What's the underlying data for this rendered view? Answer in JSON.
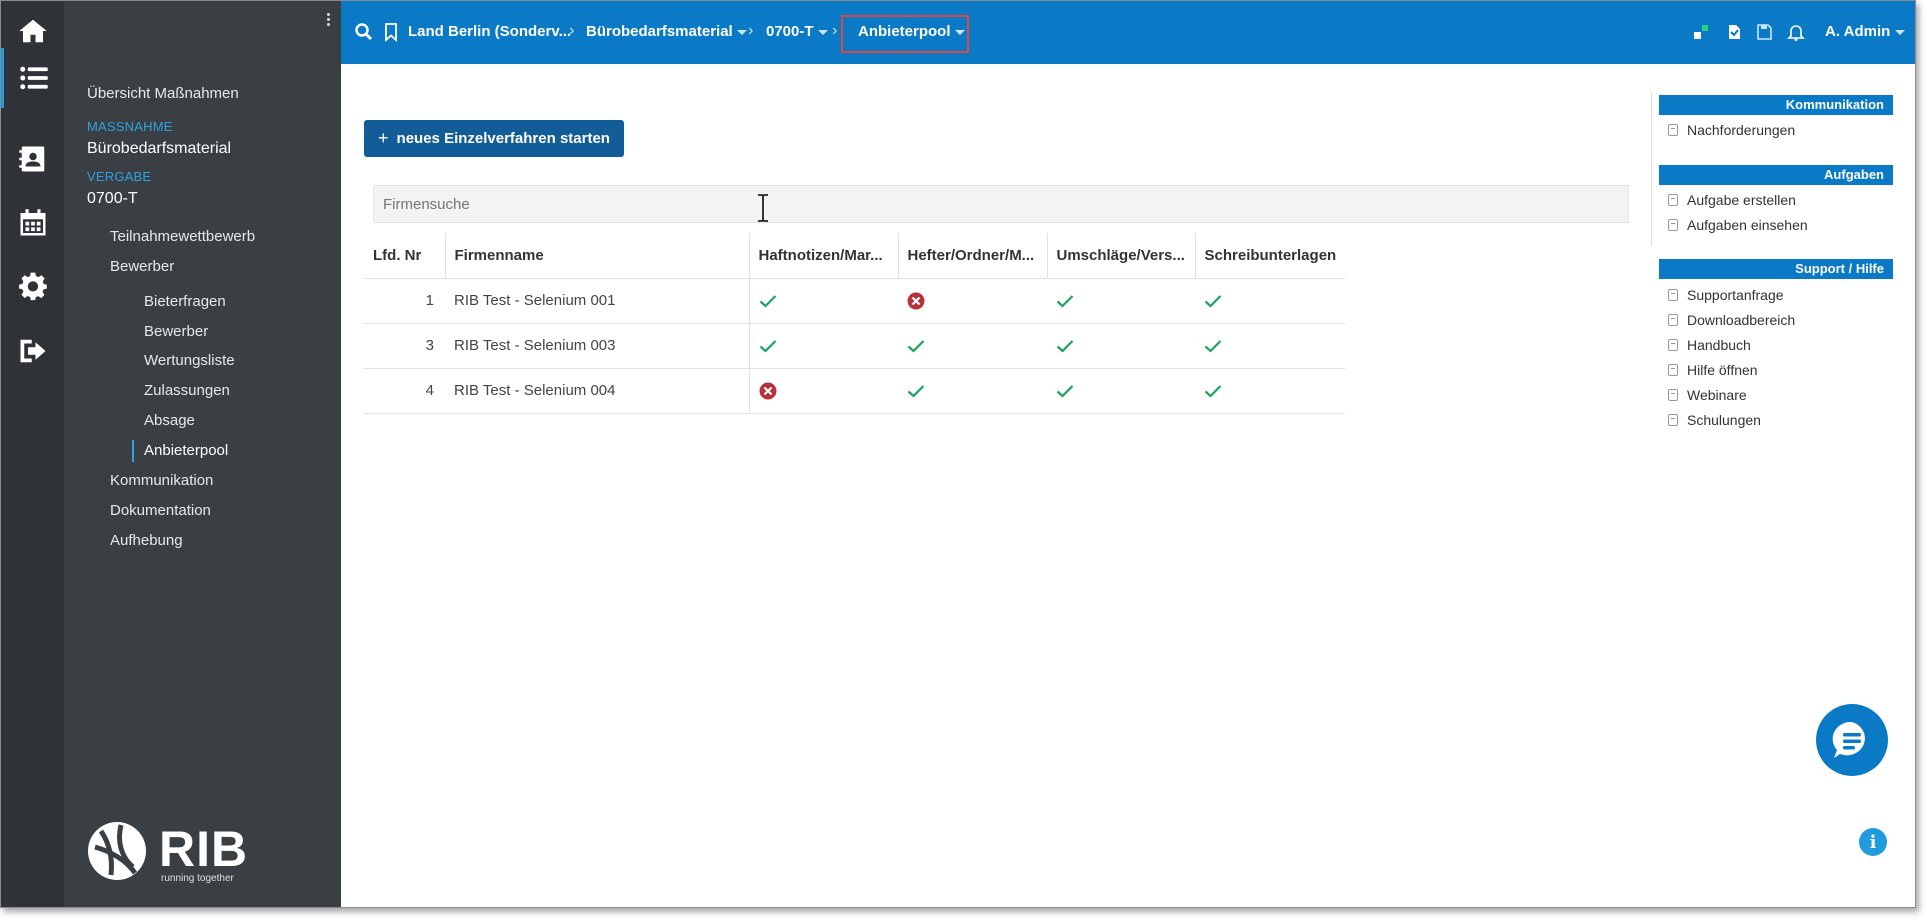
{
  "nav": {
    "overview": "Übersicht Maßnahmen",
    "massnahme_label": "Maßnahme",
    "massnahme_value": "Bürobedarfsmaterial",
    "vergabe_label": "Vergabe",
    "vergabe_value": "0700-T",
    "items": [
      {
        "label": "Teilnahmewettbewerb"
      },
      {
        "label": "Bewerber"
      }
    ],
    "subitems": [
      {
        "label": "Bieterfragen"
      },
      {
        "label": "Bewerber"
      },
      {
        "label": "Wertungsliste"
      },
      {
        "label": "Zulassungen"
      },
      {
        "label": "Absage"
      },
      {
        "label": "Anbieterpool"
      }
    ],
    "items_after": [
      {
        "label": "Kommunikation"
      },
      {
        "label": "Dokumentation"
      },
      {
        "label": "Aufhebung"
      }
    ],
    "logo_text": "RIB",
    "logo_sub": "running together"
  },
  "topbar": {
    "breadcrumbs": [
      {
        "label": "Land Berlin (Sonderv..."
      },
      {
        "label": "Bürobedarfsmaterial"
      },
      {
        "label": "0700-T"
      },
      {
        "label": "Anbieterpool"
      }
    ],
    "user": "A. Admin"
  },
  "main": {
    "new_button": "neues Einzelverfahren starten",
    "search_placeholder": "Firmensuche",
    "table": {
      "headers": [
        "Lfd. Nr",
        "Firmenname",
        "Haftnotizen/Mar...",
        "Hefter/Ordner/M...",
        "Umschläge/Vers...",
        "Schreibunterlagen"
      ],
      "rows": [
        {
          "nr": "1",
          "name": "RIB Test - Selenium 001",
          "marks": [
            "check",
            "cross",
            "check",
            "check"
          ]
        },
        {
          "nr": "3",
          "name": "RIB Test - Selenium 003",
          "marks": [
            "check",
            "check",
            "check",
            "check"
          ]
        },
        {
          "nr": "4",
          "name": "RIB Test - Selenium 004",
          "marks": [
            "cross",
            "check",
            "check",
            "check"
          ]
        }
      ]
    }
  },
  "right_panel": {
    "sections": [
      {
        "title": "Kommunikation",
        "items": [
          "Nachforderungen"
        ]
      },
      {
        "title": "Aufgaben",
        "items": [
          "Aufgabe erstellen",
          "Aufgaben einsehen"
        ]
      },
      {
        "title": "Support / Hilfe",
        "items": [
          "Supportanfrage",
          "Downloadbereich",
          "Handbuch",
          "Hilfe öffnen",
          "Webinare",
          "Schulungen"
        ]
      }
    ]
  },
  "colors": {
    "topbar": "#0a79c6",
    "rail": "#2f3337",
    "nav": "#3a3f44",
    "accent": "#2ea3e3",
    "check": "#1aa55c",
    "cross": "#b8323a",
    "button": "#125c98"
  },
  "icons": [
    "home-icon",
    "list-icon",
    "contacts-icon",
    "calendar-icon",
    "gear-icon",
    "logout-icon",
    "search-icon",
    "bookmark-icon",
    "bell-icon",
    "chat-icon",
    "info-icon"
  ]
}
